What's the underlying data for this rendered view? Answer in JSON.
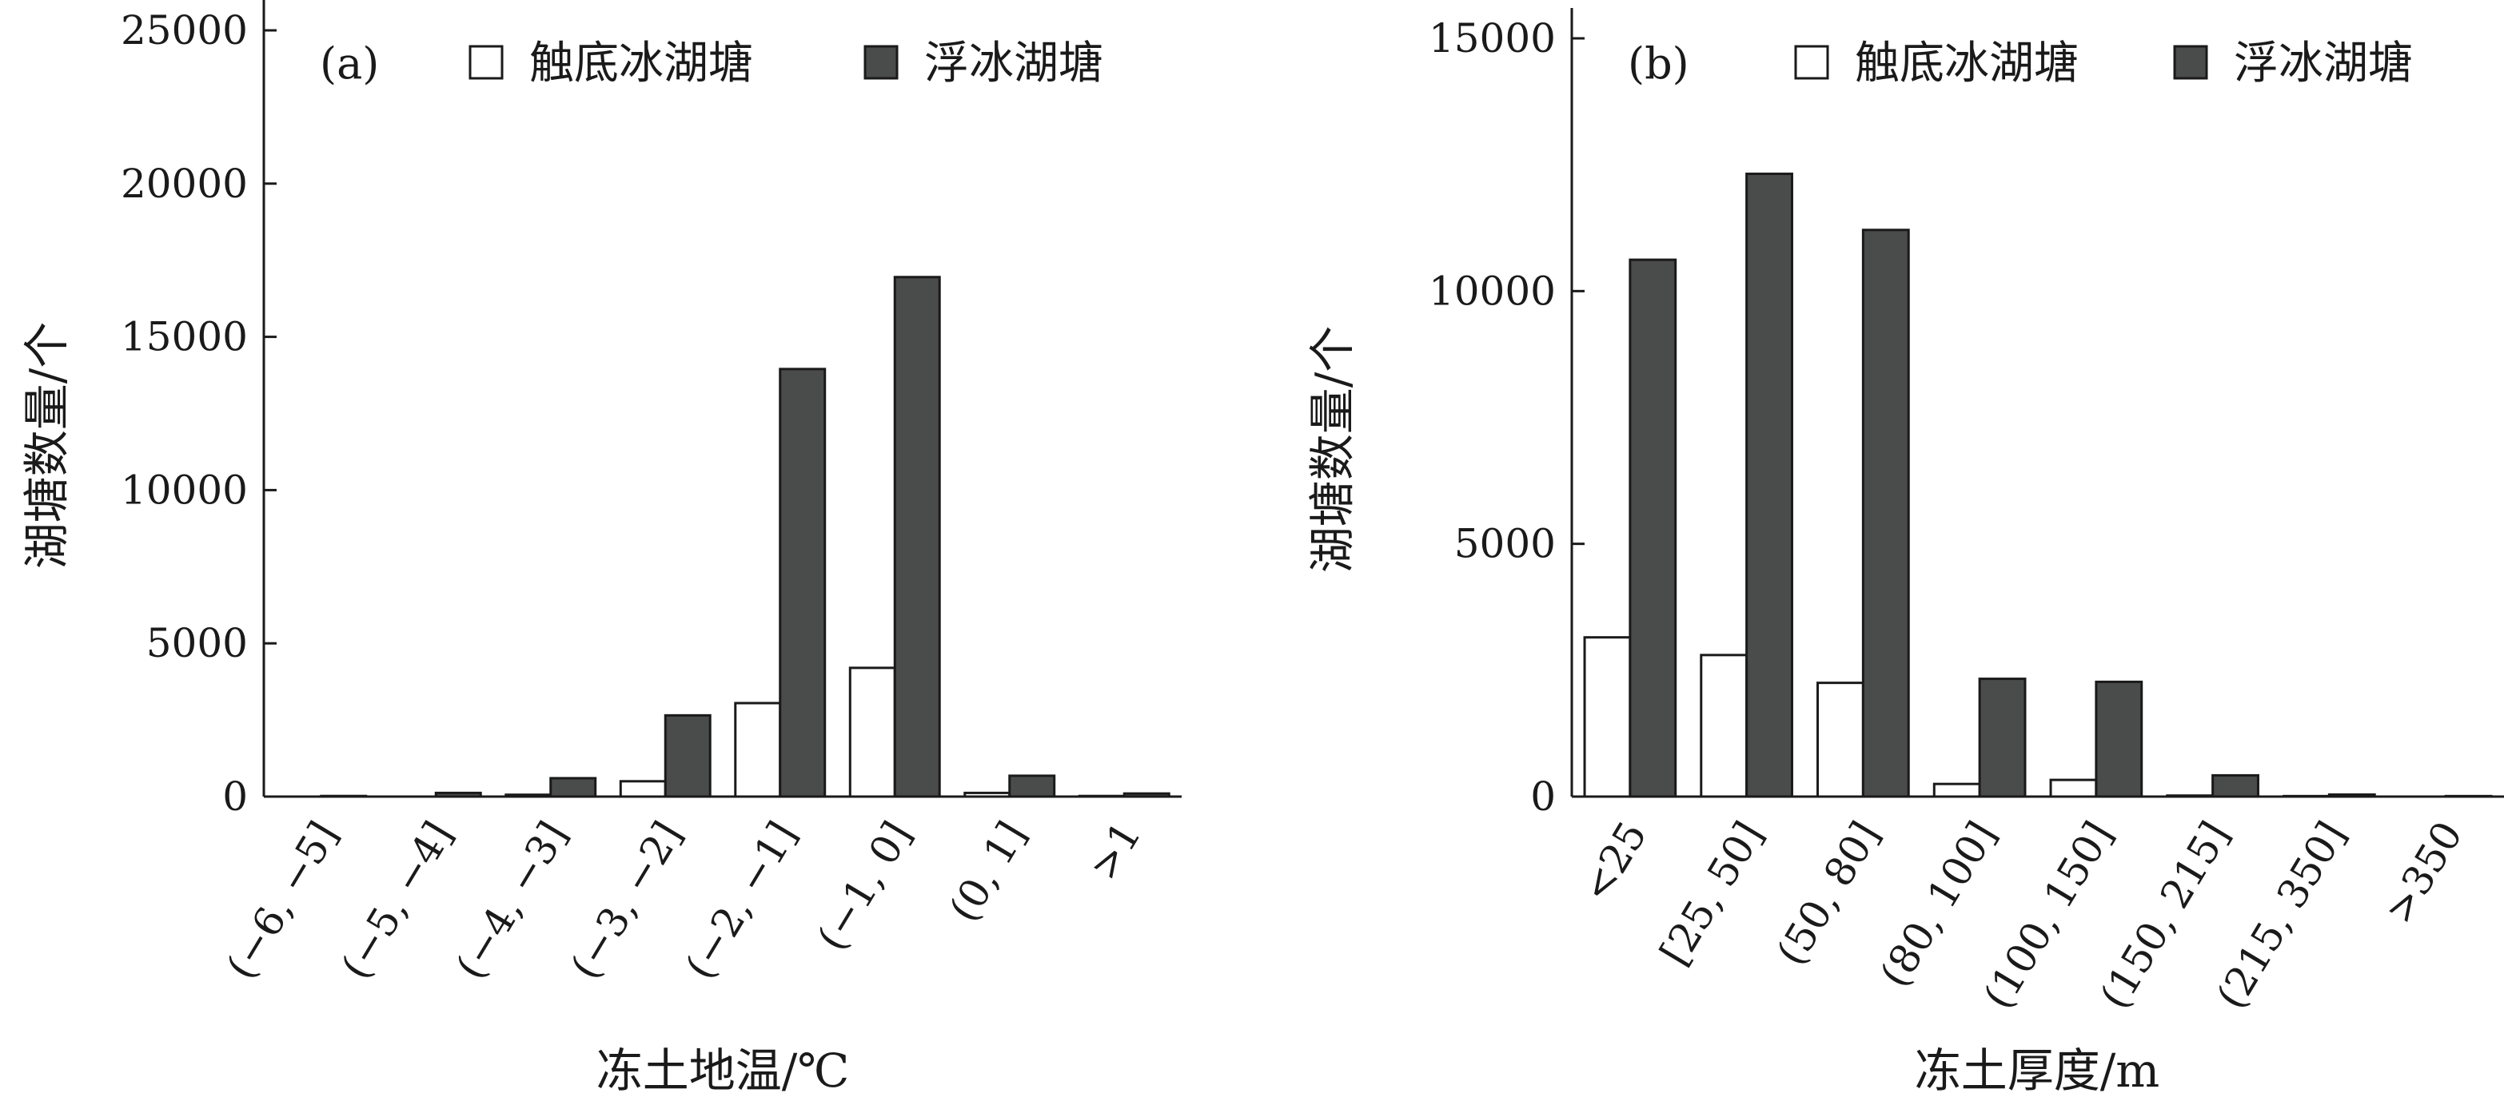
{
  "chart_data": [
    {
      "type": "bar",
      "panel": "(a)",
      "categories": [
        "(−6, −5]",
        "(−5, −4]",
        "(−4, −3]",
        "(−3, −2]",
        "(−2, −1]",
        "(−1, 0]",
        "(0, 1]",
        ">1"
      ],
      "series": [
        {
          "name": "触底冰湖塘",
          "color": "#ffffff",
          "values": [
            0,
            0,
            60,
            500,
            3050,
            4200,
            120,
            20
          ]
        },
        {
          "name": "浮冰湖塘",
          "color": "#4a4b4b",
          "values": [
            20,
            120,
            600,
            2650,
            13950,
            16950,
            680,
            100
          ]
        }
      ],
      "xlabel": "冻土地温/℃",
      "ylabel": "湖塘数量/个",
      "ylim": [
        0,
        25000
      ],
      "yticks": [
        0,
        5000,
        10000,
        15000,
        20000,
        25000
      ],
      "legend": "top",
      "grid": false
    },
    {
      "type": "bar",
      "panel": "(b)",
      "categories": [
        "<25",
        "[25, 50]",
        "(50, 80]",
        "(80, 100]",
        "(100, 150]",
        "(150, 215]",
        "(215, 350]",
        ">350"
      ],
      "series": [
        {
          "name": "触底冰湖塘",
          "color": "#ffffff",
          "values": [
            3150,
            2800,
            2250,
            250,
            330,
            20,
            10,
            0
          ]
        },
        {
          "name": "浮冰湖塘",
          "color": "#4a4b4b",
          "values": [
            10620,
            12320,
            11210,
            2330,
            2270,
            420,
            40,
            10
          ]
        }
      ],
      "xlabel": "冻土厚度/m",
      "ylabel": "湖塘数量/个",
      "ylim": [
        0,
        15000
      ],
      "yticks": [
        0,
        5000,
        10000,
        15000
      ],
      "legend": "top",
      "grid": false
    }
  ]
}
